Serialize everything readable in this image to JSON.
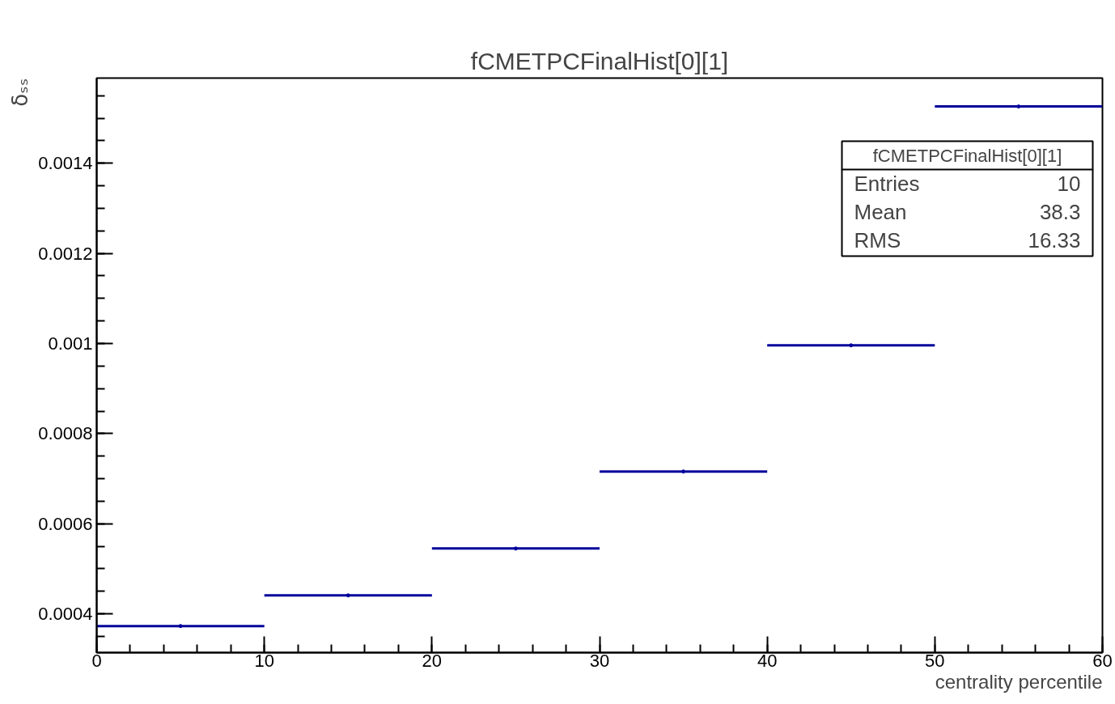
{
  "chart_data": {
    "type": "scatter",
    "title": "fCMETPCFinalHist[0][1]",
    "xlabel": "centrality percentile",
    "ylabel": "δₛₛ",
    "x": [
      5,
      15,
      25,
      35,
      45,
      55
    ],
    "values": [
      0.000373,
      0.000441,
      0.000545,
      0.000716,
      0.000996,
      0.001526
    ],
    "xerrors": [
      [
        0,
        10
      ],
      [
        10,
        20
      ],
      [
        20,
        30
      ],
      [
        30,
        40
      ],
      [
        40,
        50
      ],
      [
        50,
        60
      ]
    ],
    "color": "#00009c",
    "marker": "circle",
    "xlim": [
      0,
      60
    ],
    "xticks": [
      0,
      10,
      20,
      30,
      40,
      50,
      60
    ],
    "ylim": [
      0.000314,
      0.001589
    ],
    "yticks": [
      0.0004,
      0.0006,
      0.0008,
      0.001,
      0.0012,
      0.0014
    ],
    "annotations": [
      "fCMETPCFinalHist[0][1]",
      "Entries",
      "10",
      "Mean",
      "38.3",
      "RMS",
      "16.33"
    ]
  }
}
